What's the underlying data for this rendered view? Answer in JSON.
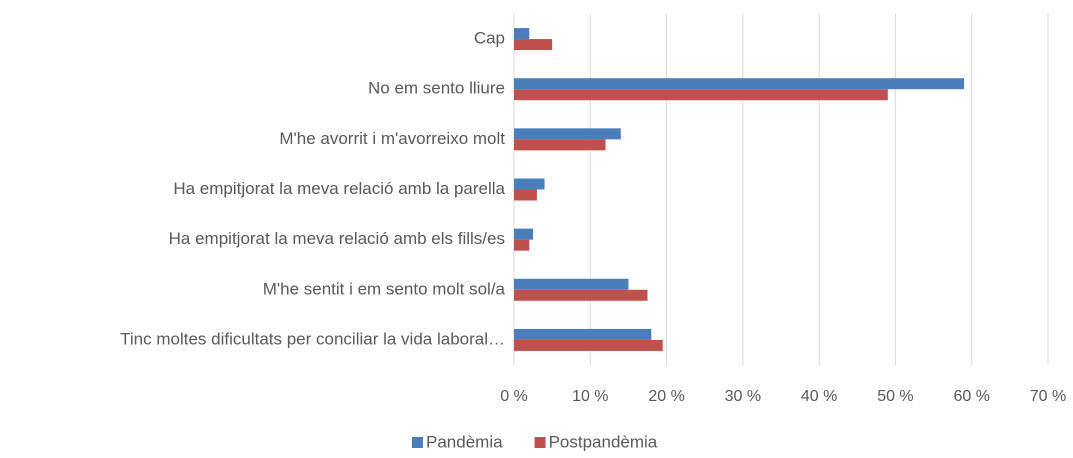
{
  "chart_data": {
    "type": "barh",
    "categories": [
      "Cap",
      "No em sento lliure",
      "M'he avorrit i m'avorreixo molt",
      "Ha empitjorat la meva relació amb la parella",
      "Ha empitjorat la meva relació amb els fills/es",
      "M'he sentit i em sento molt sol/a",
      "Tinc moltes dificultats per conciliar la vida laboral…"
    ],
    "series": [
      {
        "name": "Pandèmia",
        "color": "#4a7ebb",
        "values": [
          2,
          59,
          14,
          4,
          2.5,
          15,
          18
        ]
      },
      {
        "name": "Postpandèmia",
        "color": "#c0504d",
        "values": [
          5,
          49,
          12,
          3,
          2,
          17.5,
          19.5
        ]
      }
    ],
    "xlim": [
      0,
      70
    ],
    "xticks": [
      {
        "value": 0,
        "label": "0 %"
      },
      {
        "value": 10,
        "label": "10 %"
      },
      {
        "value": 20,
        "label": "20 %"
      },
      {
        "value": 30,
        "label": "30 %"
      },
      {
        "value": 40,
        "label": "40 %"
      },
      {
        "value": 50,
        "label": "50 %"
      },
      {
        "value": 60,
        "label": "60 %"
      },
      {
        "value": 70,
        "label": "70 %"
      }
    ],
    "grid": true,
    "legend": "bottom"
  }
}
